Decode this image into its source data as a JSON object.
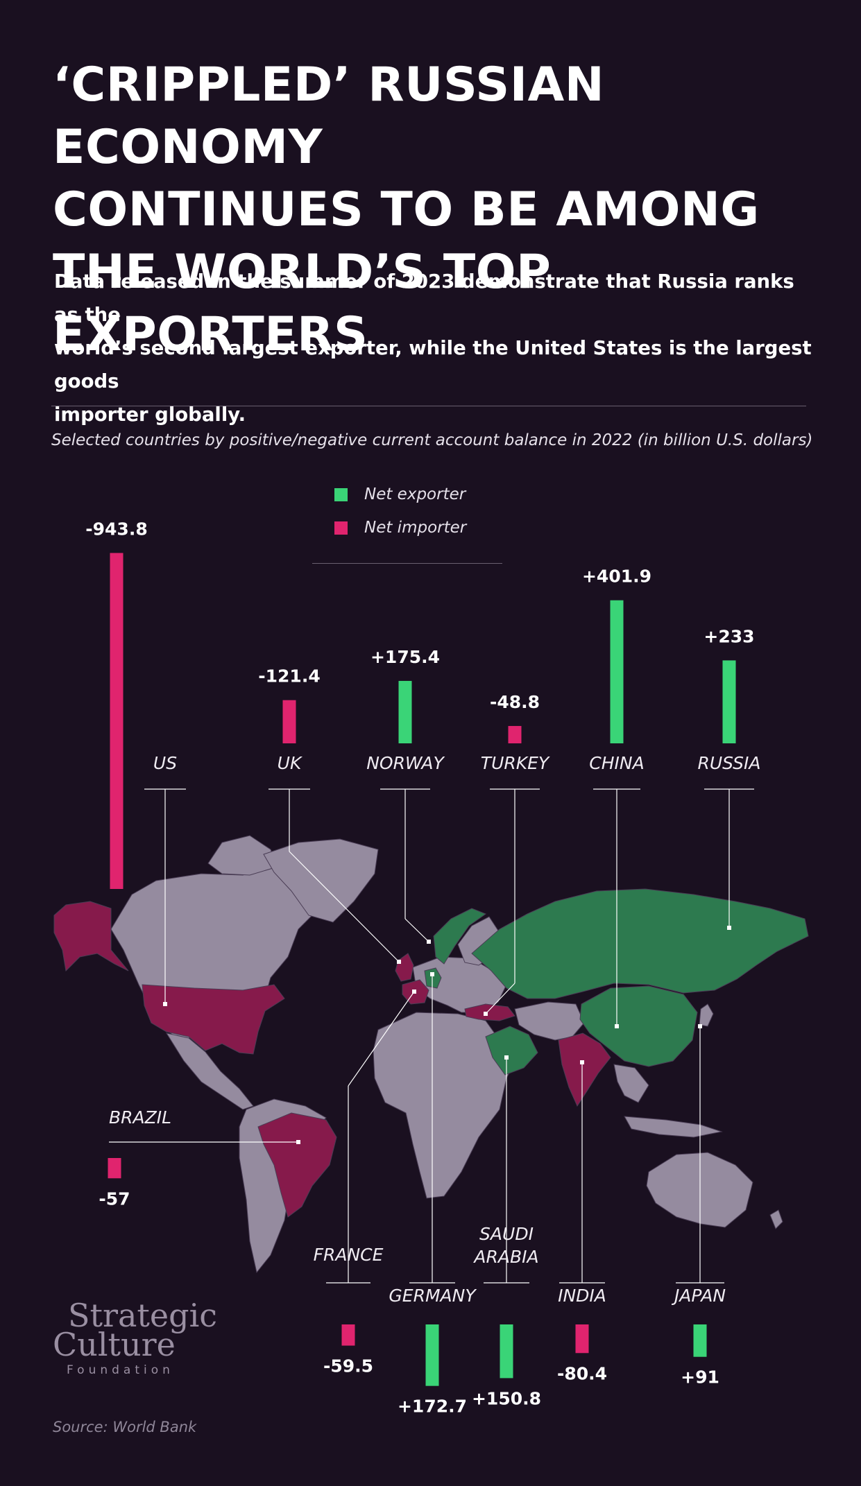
{
  "header": {
    "title_lines": [
      "‘CRIPPLED’ RUSSIAN ECONOMY",
      "CONTINUES TO BE AMONG",
      "THE WORLD’S TOP EXPORTERS"
    ],
    "subtitle_lines": [
      "Data released in the summer of 2023 demonstrate that Russia ranks as the",
      "world’s second largest exporter, while the United States is the largest goods",
      "importer globally."
    ]
  },
  "legend": {
    "exporter": {
      "label": "Net exporter",
      "color": "#3ad477"
    },
    "importer": {
      "label": "Net importer",
      "color": "#e0246e"
    }
  },
  "map_colors": {
    "land": "#958b9f",
    "exporter": "#2d7a4f",
    "importer": "#861a4b",
    "marker": "#ffffff"
  },
  "chart_data": {
    "type": "bar",
    "title": "Selected countries by positive/negative current account balance in 2022 (in billion U.S. dollars)",
    "unit": "billion U.S. dollars",
    "categories": [
      "US",
      "UK",
      "NORWAY",
      "TURKEY",
      "CHINA",
      "RUSSIA",
      "BRAZIL",
      "FRANCE",
      "GERMANY",
      "SAUDI ARABIA",
      "INDIA",
      "JAPAN"
    ],
    "values": [
      -943.8,
      -121.4,
      175.4,
      -48.8,
      401.9,
      233,
      -57,
      -59.5,
      172.7,
      150.8,
      -80.4,
      91
    ],
    "value_labels": [
      "-943.8",
      "-121.4",
      "+175.4",
      "-48.8",
      "+401.9",
      "+233",
      "-57",
      "-59.5",
      "+172.7",
      "+150.8",
      "-80.4",
      "+91"
    ]
  },
  "logo": {
    "line1": "Strategic",
    "line2": "Culture",
    "line3": "Foundation"
  },
  "source": "Source: World Bank"
}
